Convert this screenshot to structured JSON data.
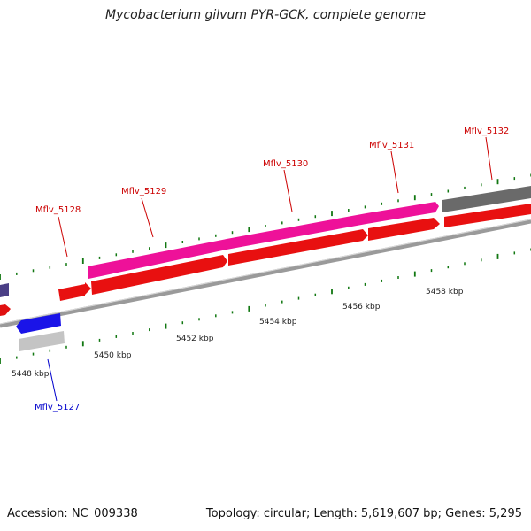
{
  "title": "Mycobacterium gilvum PYR-GCK, complete genome",
  "footer": {
    "accession": "Accession: NC_009338",
    "topology": "Topology: circular; Length: 5,619,607 bp; Genes: 5,295"
  },
  "colors": {
    "forward_cds": "#ff0000",
    "forward_gene": "#ee1199",
    "reverse_cds": "#0000ff",
    "reverse_gene": "#c0c0c0",
    "dark_gene": "#666666",
    "reverse_label": "#0000cc",
    "forward_label": "#cc0000",
    "tick": "#117711",
    "backbone": "#888888"
  },
  "coordinate_labels": [
    "5448 kbp",
    "5450 kbp",
    "5452 kbp",
    "5454 kbp",
    "5456 kbp",
    "5458 kbp"
  ],
  "gene_labels": [
    {
      "text": "Mflv_5127",
      "strand": "reverse"
    },
    {
      "text": "Mflv_5128",
      "strand": "forward"
    },
    {
      "text": "Mflv_5129",
      "strand": "forward"
    },
    {
      "text": "Mflv_5130",
      "strand": "forward"
    },
    {
      "text": "Mflv_5131",
      "strand": "forward"
    },
    {
      "text": "Mflv_5132",
      "strand": "forward"
    }
  ],
  "icons": {
    "forward_feature": "arrow-right",
    "reverse_feature": "arrow-left"
  }
}
